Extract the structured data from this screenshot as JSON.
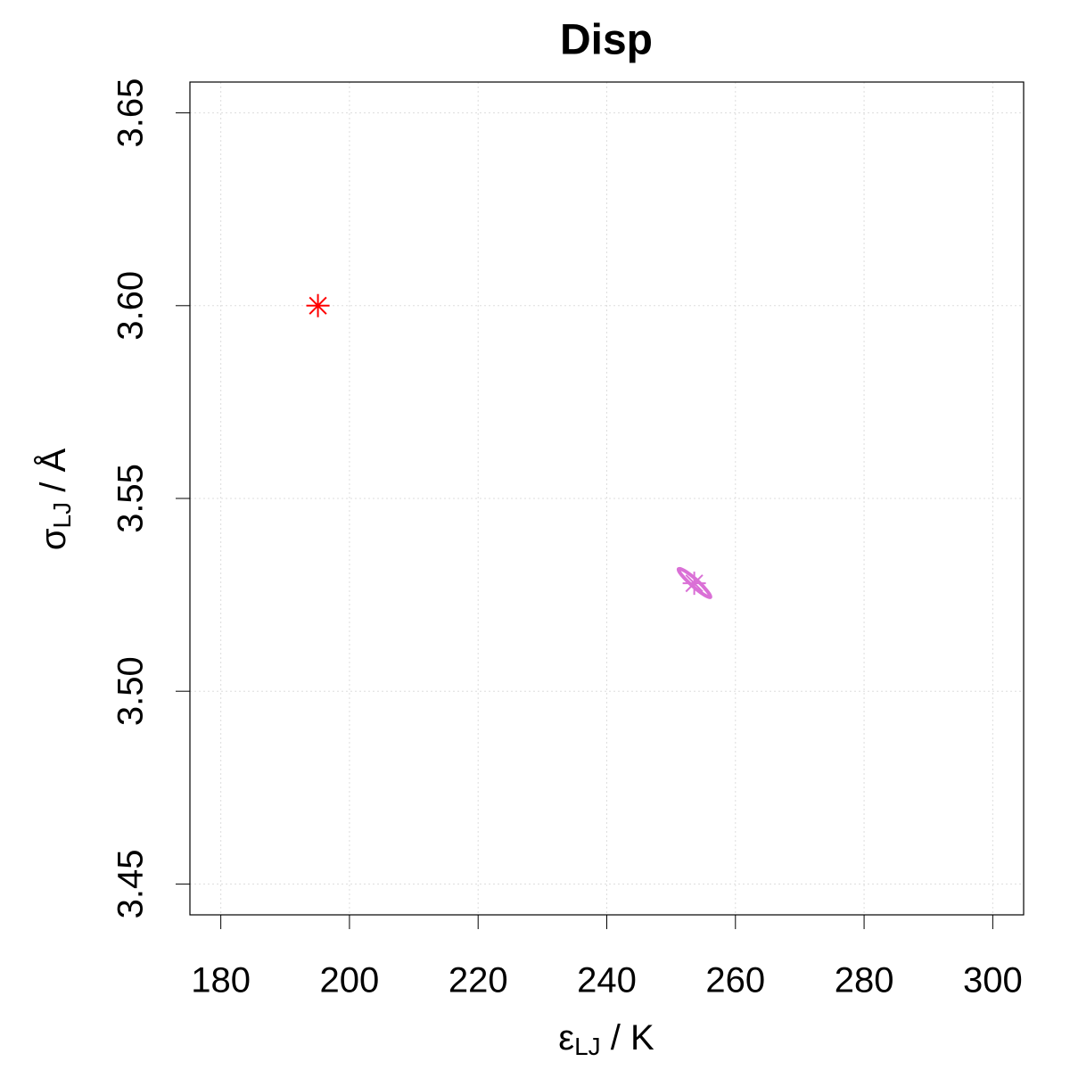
{
  "chart_data": {
    "type": "scatter",
    "title": "Disp",
    "xlabel": {
      "symbol": "ε",
      "subscript": "LJ",
      "rest": " / K"
    },
    "ylabel": {
      "symbol": "σ",
      "subscript": "LJ",
      "rest": " / Å"
    },
    "xlim": [
      175.2,
      304.8
    ],
    "xticks": [
      180,
      200,
      220,
      240,
      260,
      280,
      300
    ],
    "ylim": [
      3.442,
      3.658
    ],
    "yticks": [
      3.45,
      {
        "value": 3.5,
        "label": "3.50"
      },
      3.55,
      {
        "value": 3.6,
        "label": "3.60"
      },
      3.65
    ],
    "grid": true,
    "series": [
      {
        "color": "#ff0000",
        "marker": "star",
        "x": [
          195.1
        ],
        "values": [
          3.6
        ]
      },
      {
        "color": "#da70d6",
        "marker": "star",
        "x": [
          253.6
        ],
        "values": [
          3.528
        ]
      }
    ],
    "contours": [
      {
        "color": "#da70d6",
        "x": [
          256.11,
          255.13,
          253.26,
          251.61,
          251.16,
          252.14,
          254.01,
          255.65
        ],
        "values": [
          3.5244,
          3.525,
          3.5274,
          3.5302,
          3.5317,
          3.5312,
          3.5288,
          3.5259
        ]
      }
    ]
  }
}
